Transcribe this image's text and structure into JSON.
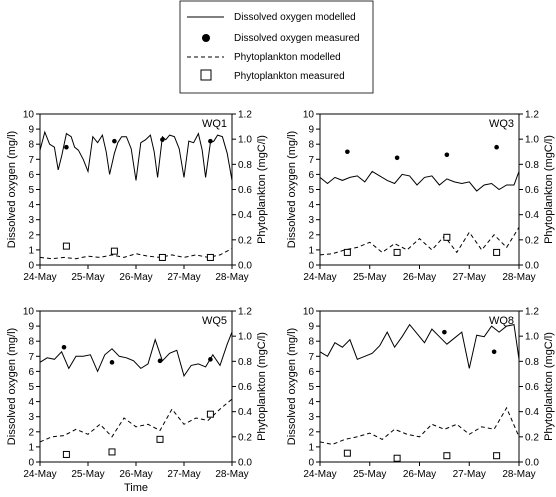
{
  "legend": {
    "items": [
      {
        "label": "Dissolved oxygen modelled",
        "style": "solid-line"
      },
      {
        "label": "Dissolved oxygen measured",
        "style": "filled-circle"
      },
      {
        "label": "Phytoplankton modelled",
        "style": "dashed-line"
      },
      {
        "label": "Phytoplankton measured",
        "style": "open-square"
      }
    ]
  },
  "xlabel_bottom": "Time",
  "chart_data": [
    {
      "type": "line",
      "panel": "WQ1",
      "ylabel_left": "Dissolved oxygen (mg/l)",
      "ylabel_right": "Phytoplankton (mgC/l)",
      "x_ticks": [
        "24-May",
        "25-May",
        "26-May",
        "27-May",
        "28-May"
      ],
      "ylim_left": [
        0,
        10
      ],
      "ylim_right": [
        0,
        1.2
      ],
      "y_ticks_left": [
        "0",
        "1",
        "2",
        "3",
        "4",
        "5",
        "6",
        "7",
        "8",
        "9",
        "10"
      ],
      "y_ticks_right": [
        "0.0",
        "0.2",
        "0.4",
        "0.6",
        "0.8",
        "1.0",
        "1.2"
      ],
      "series": [
        {
          "name": "Dissolved oxygen modelled",
          "style": "solid",
          "axis": "left",
          "x": [
            0,
            0.1,
            0.2,
            0.3,
            0.38,
            0.45,
            0.55,
            0.65,
            0.72,
            0.8,
            0.9,
            1.0,
            1.1,
            1.2,
            1.3,
            1.38,
            1.45,
            1.55,
            1.62,
            1.7,
            1.8,
            1.9,
            2.0,
            2.1,
            2.2,
            2.3,
            2.38,
            2.45,
            2.55,
            2.62,
            2.7,
            2.8,
            2.9,
            3.0,
            3.1,
            3.2,
            3.3,
            3.38,
            3.45,
            3.55,
            3.62,
            3.7,
            3.8,
            3.9,
            4.0
          ],
          "y": [
            7.6,
            8.8,
            8.0,
            7.8,
            6.3,
            7.2,
            8.7,
            8.5,
            7.8,
            7.6,
            7.0,
            6.2,
            8.5,
            8.1,
            8.6,
            7.5,
            6.0,
            7.4,
            8.1,
            8.5,
            8.5,
            7.7,
            5.6,
            8.1,
            8.3,
            8.6,
            7.5,
            5.8,
            8.5,
            8.3,
            8.6,
            8.5,
            7.7,
            5.8,
            8.2,
            8.1,
            8.7,
            7.6,
            5.8,
            8.1,
            8.2,
            8.6,
            8.5,
            7.4,
            5.6
          ]
        },
        {
          "name": "Dissolved oxygen measured",
          "style": "marker-circle",
          "axis": "left",
          "x": [
            0.55,
            1.55,
            2.55,
            3.55
          ],
          "y": [
            7.8,
            8.2,
            8.3,
            8.2
          ]
        },
        {
          "name": "Phytoplankton modelled",
          "style": "dashed",
          "axis": "right",
          "x": [
            0,
            0.25,
            0.5,
            0.75,
            1.0,
            1.25,
            1.5,
            1.75,
            2.0,
            2.25,
            2.5,
            2.75,
            3.0,
            3.25,
            3.5,
            3.75,
            4.0
          ],
          "y": [
            0.06,
            0.05,
            0.06,
            0.05,
            0.07,
            0.06,
            0.08,
            0.06,
            0.09,
            0.07,
            0.06,
            0.08,
            0.06,
            0.08,
            0.06,
            0.08,
            0.13
          ]
        },
        {
          "name": "Phytoplankton measured",
          "style": "marker-square",
          "axis": "right",
          "x": [
            0.55,
            1.55,
            2.55,
            3.55
          ],
          "y": [
            0.15,
            0.11,
            0.06,
            0.06
          ]
        }
      ]
    },
    {
      "type": "line",
      "panel": "WQ3",
      "ylabel_left": "Dissolved oxygen (mg/l)",
      "ylabel_right": "Phytoplankton (mgC/l)",
      "x_ticks": [
        "24-May",
        "25-May",
        "26-May",
        "27-May",
        "28-May"
      ],
      "ylim_left": [
        0,
        10
      ],
      "ylim_right": [
        0,
        1.2
      ],
      "y_ticks_left": [
        "0",
        "1",
        "2",
        "3",
        "4",
        "5",
        "6",
        "7",
        "8",
        "9",
        "10"
      ],
      "y_ticks_right": [
        "0.0",
        "0.2",
        "0.4",
        "0.6",
        "0.8",
        "1.0",
        "1.2"
      ],
      "series": [
        {
          "name": "Dissolved oxygen modelled",
          "style": "solid",
          "axis": "left",
          "x": [
            0,
            0.15,
            0.3,
            0.45,
            0.6,
            0.75,
            0.9,
            1.05,
            1.2,
            1.35,
            1.5,
            1.65,
            1.8,
            1.95,
            2.1,
            2.25,
            2.4,
            2.55,
            2.7,
            2.85,
            3.0,
            3.15,
            3.3,
            3.45,
            3.6,
            3.75,
            3.9,
            4.0
          ],
          "y": [
            5.8,
            5.4,
            5.8,
            5.6,
            5.8,
            5.9,
            5.5,
            6.2,
            5.9,
            5.6,
            5.4,
            6.0,
            5.9,
            5.3,
            5.8,
            5.9,
            5.3,
            5.7,
            5.5,
            5.4,
            5.5,
            4.9,
            5.3,
            5.4,
            5.0,
            5.3,
            5.3,
            6.2
          ]
        },
        {
          "name": "Dissolved oxygen measured",
          "style": "marker-circle",
          "axis": "left",
          "x": [
            0.55,
            1.55,
            2.55,
            3.55
          ],
          "y": [
            7.5,
            7.1,
            7.3,
            7.8
          ]
        },
        {
          "name": "Phytoplankton modelled",
          "style": "dashed",
          "axis": "right",
          "x": [
            0,
            0.25,
            0.5,
            0.75,
            1.0,
            1.25,
            1.5,
            1.75,
            2.0,
            2.25,
            2.5,
            2.75,
            3.0,
            3.25,
            3.5,
            3.75,
            4.0
          ],
          "y": [
            0.08,
            0.09,
            0.12,
            0.14,
            0.18,
            0.1,
            0.17,
            0.12,
            0.21,
            0.12,
            0.23,
            0.1,
            0.26,
            0.12,
            0.24,
            0.14,
            0.3
          ]
        },
        {
          "name": "Phytoplankton measured",
          "style": "marker-square",
          "axis": "right",
          "x": [
            0.55,
            1.55,
            2.55,
            3.55
          ],
          "y": [
            0.1,
            0.1,
            0.22,
            0.1
          ]
        }
      ]
    },
    {
      "type": "line",
      "panel": "WQ5",
      "ylabel_left": "Dissolved oxygen (mg/l)",
      "ylabel_right": "Phytoplankton (mgC/l)",
      "x_ticks": [
        "24-May",
        "25-May",
        "26-May",
        "27-May",
        "28-May"
      ],
      "ylim_left": [
        0,
        10
      ],
      "ylim_right": [
        0,
        1.2
      ],
      "y_ticks_left": [
        "0",
        "1",
        "2",
        "3",
        "4",
        "5",
        "6",
        "7",
        "8",
        "9",
        "10"
      ],
      "y_ticks_right": [
        "0.0",
        "0.2",
        "0.4",
        "0.6",
        "0.8",
        "1.0",
        "1.2"
      ],
      "series": [
        {
          "name": "Dissolved oxygen modelled",
          "style": "solid",
          "axis": "left",
          "x": [
            0,
            0.15,
            0.3,
            0.45,
            0.6,
            0.75,
            0.9,
            1.05,
            1.2,
            1.35,
            1.5,
            1.65,
            1.8,
            1.95,
            2.1,
            2.25,
            2.4,
            2.55,
            2.7,
            2.85,
            3.0,
            3.15,
            3.3,
            3.45,
            3.6,
            3.75,
            3.9,
            4.0
          ],
          "y": [
            6.6,
            6.9,
            6.8,
            7.3,
            6.2,
            7.0,
            7.0,
            7.1,
            6.0,
            7.1,
            7.5,
            7.0,
            6.9,
            6.7,
            6.2,
            6.5,
            8.1,
            6.7,
            7.2,
            7.4,
            5.7,
            6.4,
            6.5,
            6.3,
            7.1,
            6.4,
            7.8,
            8.6
          ]
        },
        {
          "name": "Dissolved oxygen measured",
          "style": "marker-circle",
          "axis": "left",
          "x": [
            0.5,
            1.5,
            2.5,
            3.55
          ],
          "y": [
            7.6,
            6.6,
            6.7,
            6.8
          ]
        },
        {
          "name": "Phytoplankton modelled",
          "style": "dashed",
          "axis": "right",
          "x": [
            0,
            0.25,
            0.5,
            0.75,
            1.0,
            1.25,
            1.5,
            1.75,
            2.0,
            2.25,
            2.5,
            2.75,
            3.0,
            3.25,
            3.5,
            3.75,
            4.0
          ],
          "y": [
            0.16,
            0.2,
            0.21,
            0.26,
            0.22,
            0.3,
            0.2,
            0.35,
            0.28,
            0.3,
            0.25,
            0.42,
            0.3,
            0.35,
            0.33,
            0.42,
            0.5
          ]
        },
        {
          "name": "Phytoplankton measured",
          "style": "marker-square",
          "axis": "right",
          "x": [
            0.55,
            1.5,
            2.5,
            3.55
          ],
          "y": [
            0.06,
            0.08,
            0.18,
            0.38
          ]
        }
      ]
    },
    {
      "type": "line",
      "panel": "WQ8",
      "ylabel_left": "Dissolved oxygen (mg/l)",
      "ylabel_right": "Phytoplankton (mgC/l)",
      "x_ticks": [
        "24-May",
        "25-May",
        "26-May",
        "27-May",
        "28-May"
      ],
      "ylim_left": [
        0,
        10
      ],
      "ylim_right": [
        0,
        1.2
      ],
      "y_ticks_left": [
        "0",
        "1",
        "2",
        "3",
        "4",
        "5",
        "6",
        "7",
        "8",
        "9",
        "10"
      ],
      "y_ticks_right": [
        "0.0",
        "0.2",
        "0.4",
        "0.6",
        "0.8",
        "1.0",
        "1.2"
      ],
      "series": [
        {
          "name": "Dissolved oxygen modelled",
          "style": "solid",
          "axis": "left",
          "x": [
            0,
            0.15,
            0.3,
            0.45,
            0.6,
            0.75,
            0.9,
            1.05,
            1.2,
            1.35,
            1.5,
            1.65,
            1.8,
            1.95,
            2.1,
            2.25,
            2.4,
            2.55,
            2.7,
            2.85,
            3.0,
            3.15,
            3.3,
            3.45,
            3.6,
            3.75,
            3.9,
            4.0
          ],
          "y": [
            7.3,
            7.0,
            7.9,
            7.6,
            8.1,
            6.8,
            7.0,
            7.2,
            7.7,
            8.6,
            7.6,
            8.3,
            9.1,
            8.5,
            7.9,
            8.8,
            8.3,
            7.8,
            8.2,
            8.6,
            6.2,
            8.4,
            8.3,
            9.0,
            8.6,
            9.0,
            9.1,
            6.8
          ]
        },
        {
          "name": "Dissolved oxygen measured",
          "style": "marker-circle",
          "axis": "left",
          "x": [
            2.5,
            3.5
          ],
          "y": [
            8.6,
            7.3
          ]
        },
        {
          "name": "Phytoplankton modelled",
          "style": "dashed",
          "axis": "right",
          "x": [
            0,
            0.25,
            0.5,
            0.75,
            1.0,
            1.25,
            1.5,
            1.75,
            2.0,
            2.25,
            2.5,
            2.75,
            3.0,
            3.25,
            3.5,
            3.75,
            4.0
          ],
          "y": [
            0.16,
            0.14,
            0.18,
            0.2,
            0.23,
            0.18,
            0.26,
            0.22,
            0.2,
            0.3,
            0.26,
            0.3,
            0.22,
            0.28,
            0.26,
            0.43,
            0.2
          ]
        },
        {
          "name": "Phytoplankton measured",
          "style": "marker-square",
          "axis": "right",
          "x": [
            0.55,
            1.55,
            2.55,
            3.55
          ],
          "y": [
            0.07,
            0.03,
            0.05,
            0.05
          ]
        }
      ]
    }
  ]
}
